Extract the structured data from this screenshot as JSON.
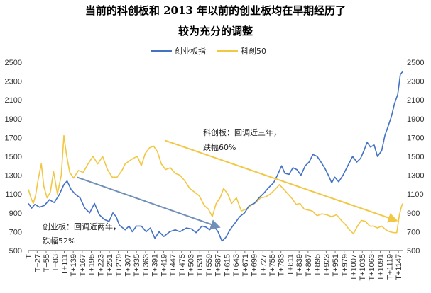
{
  "chart_data": {
    "type": "line",
    "title": [
      "当前的科创板和 2013 年以前的创业板均在早期经历了",
      "较为充分的调整"
    ],
    "xlabel": "",
    "ylabel": "",
    "ylim": [
      500,
      2500
    ],
    "y_ticks": [
      500,
      700,
      900,
      1100,
      1300,
      1500,
      1700,
      1900,
      2100,
      2300,
      2500
    ],
    "x_range": [
      0,
      1160
    ],
    "x_ticks": [
      "T",
      "T+27",
      "T+55",
      "T+83",
      "T+111",
      "T+139",
      "T+167",
      "T+195",
      "T+223",
      "T+251",
      "T+279",
      "T+307",
      "T+335",
      "T+363",
      "T+391",
      "T+419",
      "T+447",
      "T+475",
      "T+503",
      "T+531",
      "T+559",
      "T+587",
      "T+615",
      "T+643",
      "T+671",
      "T+699",
      "T+727",
      "T+755",
      "T+783",
      "T+811",
      "T+839",
      "T+867",
      "T+895",
      "T+923",
      "T+951",
      "T+979",
      "T+1007",
      "T+1035",
      "T+1063",
      "T+1091",
      "T+1119",
      "T+1147"
    ],
    "x_tick_values": [
      0,
      27,
      55,
      83,
      111,
      139,
      167,
      195,
      223,
      251,
      279,
      307,
      335,
      363,
      391,
      419,
      447,
      475,
      503,
      531,
      559,
      587,
      615,
      643,
      671,
      699,
      727,
      755,
      783,
      811,
      839,
      867,
      895,
      923,
      951,
      979,
      1007,
      1035,
      1063,
      1091,
      1119,
      1147
    ],
    "legend": {
      "position": "top"
    },
    "grid": false,
    "series": [
      {
        "name": "创业板指",
        "color": "#4472C4",
        "points": [
          [
            0,
            1000
          ],
          [
            10,
            950
          ],
          [
            20,
            990
          ],
          [
            35,
            960
          ],
          [
            50,
            980
          ],
          [
            65,
            1040
          ],
          [
            80,
            1010
          ],
          [
            95,
            1090
          ],
          [
            110,
            1200
          ],
          [
            120,
            1240
          ],
          [
            132,
            1150
          ],
          [
            145,
            1100
          ],
          [
            160,
            1060
          ],
          [
            175,
            950
          ],
          [
            190,
            900
          ],
          [
            205,
            1000
          ],
          [
            220,
            880
          ],
          [
            235,
            830
          ],
          [
            250,
            810
          ],
          [
            262,
            900
          ],
          [
            272,
            860
          ],
          [
            282,
            770
          ],
          [
            300,
            720
          ],
          [
            312,
            760
          ],
          [
            322,
            700
          ],
          [
            335,
            760
          ],
          [
            350,
            760
          ],
          [
            365,
            700
          ],
          [
            378,
            740
          ],
          [
            392,
            630
          ],
          [
            405,
            700
          ],
          [
            420,
            650
          ],
          [
            438,
            700
          ],
          [
            455,
            720
          ],
          [
            470,
            700
          ],
          [
            490,
            740
          ],
          [
            505,
            730
          ],
          [
            520,
            690
          ],
          [
            538,
            760
          ],
          [
            550,
            750
          ],
          [
            562,
            720
          ],
          [
            575,
            760
          ],
          [
            588,
            700
          ],
          [
            600,
            600
          ],
          [
            612,
            640
          ],
          [
            625,
            720
          ],
          [
            640,
            790
          ],
          [
            655,
            860
          ],
          [
            670,
            900
          ],
          [
            685,
            980
          ],
          [
            700,
            1000
          ],
          [
            715,
            1060
          ],
          [
            730,
            1110
          ],
          [
            745,
            1170
          ],
          [
            760,
            1220
          ],
          [
            772,
            1300
          ],
          [
            785,
            1400
          ],
          [
            795,
            1320
          ],
          [
            808,
            1310
          ],
          [
            820,
            1380
          ],
          [
            832,
            1360
          ],
          [
            845,
            1300
          ],
          [
            858,
            1400
          ],
          [
            870,
            1440
          ],
          [
            882,
            1520
          ],
          [
            895,
            1500
          ],
          [
            905,
            1450
          ],
          [
            918,
            1380
          ],
          [
            930,
            1300
          ],
          [
            940,
            1220
          ],
          [
            950,
            1280
          ],
          [
            962,
            1230
          ],
          [
            975,
            1300
          ],
          [
            990,
            1400
          ],
          [
            1005,
            1500
          ],
          [
            1018,
            1440
          ],
          [
            1030,
            1480
          ],
          [
            1040,
            1560
          ],
          [
            1050,
            1650
          ],
          [
            1060,
            1600
          ],
          [
            1072,
            1620
          ],
          [
            1082,
            1500
          ],
          [
            1095,
            1560
          ],
          [
            1105,
            1720
          ],
          [
            1115,
            1820
          ],
          [
            1125,
            1920
          ],
          [
            1135,
            2060
          ],
          [
            1145,
            2160
          ],
          [
            1153,
            2370
          ],
          [
            1160,
            2400
          ]
        ]
      },
      {
        "name": "科创50",
        "color": "#F2C744",
        "points": [
          [
            0,
            1150
          ],
          [
            8,
            1060
          ],
          [
            15,
            1000
          ],
          [
            22,
            1080
          ],
          [
            30,
            1250
          ],
          [
            40,
            1420
          ],
          [
            48,
            1180
          ],
          [
            58,
            1060
          ],
          [
            68,
            1120
          ],
          [
            78,
            1340
          ],
          [
            90,
            1100
          ],
          [
            102,
            1300
          ],
          [
            110,
            1720
          ],
          [
            118,
            1520
          ],
          [
            128,
            1330
          ],
          [
            140,
            1270
          ],
          [
            155,
            1350
          ],
          [
            170,
            1330
          ],
          [
            185,
            1420
          ],
          [
            200,
            1500
          ],
          [
            215,
            1420
          ],
          [
            230,
            1500
          ],
          [
            245,
            1360
          ],
          [
            260,
            1280
          ],
          [
            275,
            1280
          ],
          [
            290,
            1350
          ],
          [
            300,
            1420
          ],
          [
            312,
            1450
          ],
          [
            325,
            1480
          ],
          [
            338,
            1500
          ],
          [
            350,
            1400
          ],
          [
            362,
            1530
          ],
          [
            375,
            1590
          ],
          [
            388,
            1610
          ],
          [
            400,
            1550
          ],
          [
            412,
            1420
          ],
          [
            425,
            1360
          ],
          [
            440,
            1380
          ],
          [
            455,
            1320
          ],
          [
            470,
            1300
          ],
          [
            485,
            1240
          ],
          [
            500,
            1160
          ],
          [
            515,
            1120
          ],
          [
            530,
            1080
          ],
          [
            545,
            980
          ],
          [
            558,
            940
          ],
          [
            570,
            860
          ],
          [
            582,
            1000
          ],
          [
            594,
            1060
          ],
          [
            605,
            1160
          ],
          [
            618,
            1100
          ],
          [
            630,
            1000
          ],
          [
            645,
            1060
          ],
          [
            660,
            920
          ],
          [
            675,
            940
          ],
          [
            690,
            980
          ],
          [
            705,
            1010
          ],
          [
            720,
            1060
          ],
          [
            735,
            1070
          ],
          [
            750,
            1100
          ],
          [
            765,
            1150
          ],
          [
            778,
            1200
          ],
          [
            792,
            1150
          ],
          [
            805,
            1100
          ],
          [
            818,
            1050
          ],
          [
            830,
            990
          ],
          [
            842,
            1000
          ],
          [
            855,
            940
          ],
          [
            868,
            930
          ],
          [
            880,
            920
          ],
          [
            895,
            870
          ],
          [
            910,
            890
          ],
          [
            925,
            880
          ],
          [
            940,
            860
          ],
          [
            955,
            880
          ],
          [
            970,
            820
          ],
          [
            982,
            780
          ],
          [
            995,
            720
          ],
          [
            1008,
            680
          ],
          [
            1020,
            760
          ],
          [
            1032,
            820
          ],
          [
            1045,
            810
          ],
          [
            1058,
            760
          ],
          [
            1070,
            760
          ],
          [
            1082,
            740
          ],
          [
            1095,
            760
          ],
          [
            1108,
            720
          ],
          [
            1120,
            700
          ],
          [
            1132,
            690
          ],
          [
            1142,
            690
          ],
          [
            1150,
            880
          ],
          [
            1156,
            960
          ],
          [
            1160,
            1000
          ]
        ]
      }
    ],
    "annotations": [
      {
        "id": "star",
        "lines": [
          "科创板：回调近三年，",
          "跌幅60%"
        ],
        "arrow_color": "#F2C744",
        "arrow_from": [
          423,
          1670
        ],
        "arrow_to": [
          1140,
          820
        ]
      },
      {
        "id": "gem",
        "lines": [
          "创业板：回调近两年，",
          "跌幅52%"
        ],
        "arrow_color": "#7090B8",
        "arrow_from": [
          150,
          1280
        ],
        "arrow_to": [
          590,
          750
        ]
      }
    ]
  }
}
